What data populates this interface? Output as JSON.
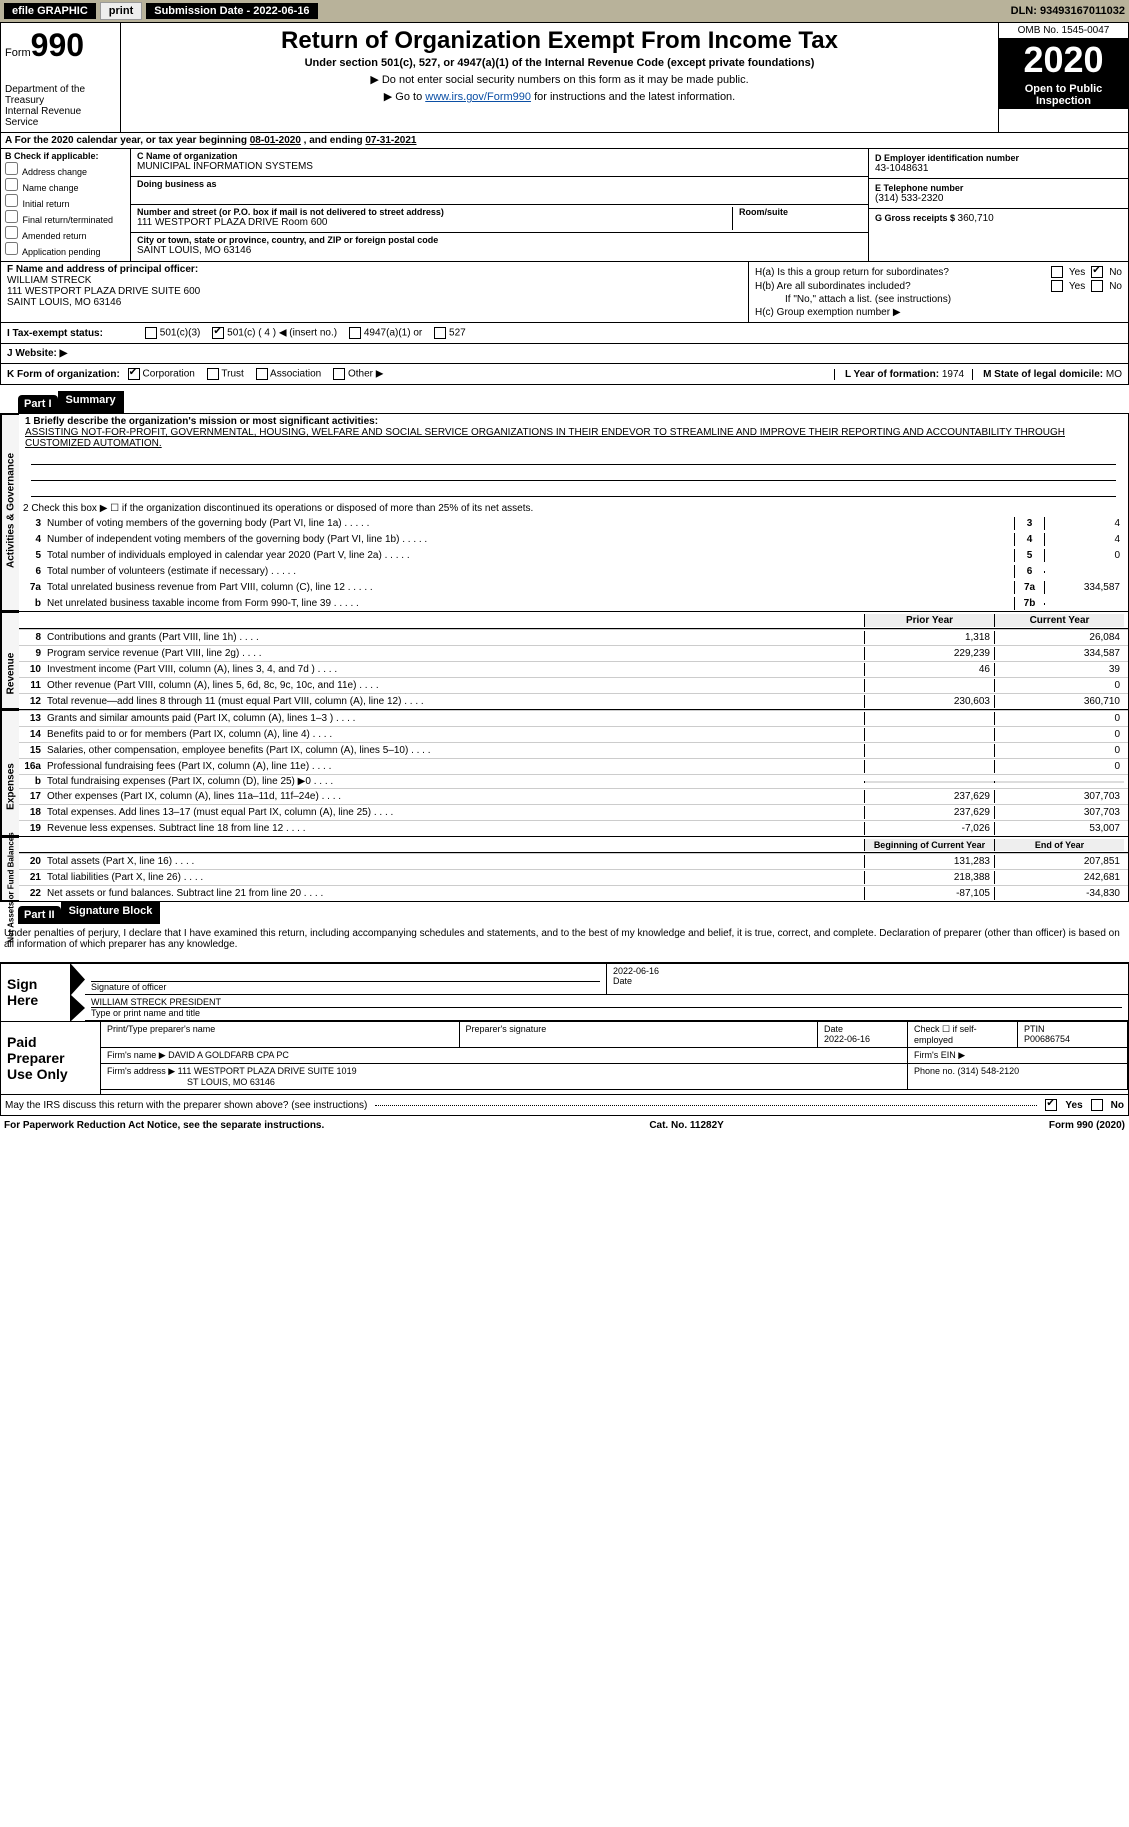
{
  "topbar": {
    "efile_label": "efile GRAPHIC",
    "print_btn": "print",
    "submission_label": "Submission Date - ",
    "submission_date": "2022-06-16",
    "dln_label": "DLN: ",
    "dln": "93493167011032"
  },
  "header": {
    "form_word": "Form",
    "form_number": "990",
    "dept1": "Department of the Treasury",
    "dept2": "Internal Revenue Service",
    "title": "Return of Organization Exempt From Income Tax",
    "subtitle": "Under section 501(c), 527, or 4947(a)(1) of the Internal Revenue Code (except private foundations)",
    "instr1": "▶ Do not enter social security numbers on this form as it may be made public.",
    "instr2_prefix": "▶ Go to ",
    "instr2_link": "www.irs.gov/Form990",
    "instr2_suffix": " for instructions and the latest information.",
    "omb": "OMB No. 1545-0047",
    "year": "2020",
    "open_public": "Open to Public Inspection"
  },
  "period": {
    "text_prefix": "A For the 2020 calendar year, or tax year beginning ",
    "begin": "08-01-2020",
    "mid": " , and ending ",
    "end": "07-31-2021"
  },
  "boxB": {
    "header": "B Check if applicable:",
    "options": [
      "Address change",
      "Name change",
      "Initial return",
      "Final return/terminated",
      "Amended return",
      "Application pending"
    ]
  },
  "boxC": {
    "name_label": "C Name of organization",
    "name": "MUNICIPAL INFORMATION SYSTEMS",
    "dba_label": "Doing business as",
    "addr_label": "Number and street (or P.O. box if mail is not delivered to street address)",
    "addr": "111 WESTPORT PLAZA DRIVE Room 600",
    "room_label": "Room/suite",
    "city_label": "City or town, state or province, country, and ZIP or foreign postal code",
    "city": "SAINT LOUIS, MO  63146"
  },
  "boxD": {
    "label": "D Employer identification number",
    "value": "43-1048631"
  },
  "boxE": {
    "label": "E Telephone number",
    "value": "(314) 533-2320"
  },
  "boxG": {
    "label": "G Gross receipts $ ",
    "value": "360,710"
  },
  "boxF": {
    "label": "F Name and address of principal officer:",
    "name": "WILLIAM STRECK",
    "addr1": "111 WESTPORT PLAZA DRIVE SUITE 600",
    "addr2": "SAINT LOUIS, MO  63146"
  },
  "boxH": {
    "a_label": "H(a)  Is this a group return for subordinates?",
    "a_no": true,
    "b_label": "H(b)  Are all subordinates included?",
    "b_note": "If \"No,\" attach a list. (see instructions)",
    "c_label": "H(c)  Group exemption number ▶"
  },
  "rowI": {
    "label": "I    Tax-exempt status:",
    "opts": [
      "501(c)(3)",
      "501(c) ( 4 ) ◀ (insert no.)",
      "4947(a)(1) or",
      "527"
    ],
    "checked_index": 1
  },
  "rowJ": {
    "label": "J    Website: ▶"
  },
  "rowK": {
    "label": "K Form of organization:",
    "opts": [
      "Corporation",
      "Trust",
      "Association",
      "Other ▶"
    ],
    "checked_index": 0,
    "L_label": "L Year of formation: ",
    "L_value": "1974",
    "M_label": "M State of legal domicile: ",
    "M_value": "MO"
  },
  "parts": {
    "part1_label": "Part I",
    "part1_title": "Summary",
    "part2_label": "Part II",
    "part2_title": "Signature Block"
  },
  "summary": {
    "mission_label": "1   Briefly describe the organization's mission or most significant activities:",
    "mission": "ASSISTING NOT-FOR-PROFIT, GOVERNMENTAL, HOUSING, WELFARE AND SOCIAL SERVICE ORGANIZATIONS IN THEIR ENDEVOR TO STREAMLINE AND IMPROVE THEIR REPORTING AND ACCOUNTABILITY THROUGH CUSTOMIZED AUTOMATION.",
    "line2": "2   Check this box ▶ ☐  if the organization discontinued its operations or disposed of more than 25% of its net assets.",
    "governance_tab": "Activities & Governance",
    "revenue_tab": "Revenue",
    "expenses_tab": "Expenses",
    "netassets_tab": "Net Assets or Fund Balances",
    "gov_lines": [
      {
        "n": "3",
        "d": "Number of voting members of the governing body (Part VI, line 1a)",
        "idx": "3",
        "v": "4"
      },
      {
        "n": "4",
        "d": "Number of independent voting members of the governing body (Part VI, line 1b)",
        "idx": "4",
        "v": "4"
      },
      {
        "n": "5",
        "d": "Total number of individuals employed in calendar year 2020 (Part V, line 2a)",
        "idx": "5",
        "v": "0"
      },
      {
        "n": "6",
        "d": "Total number of volunteers (estimate if necessary)",
        "idx": "6",
        "v": ""
      },
      {
        "n": "7a",
        "d": "Total unrelated business revenue from Part VIII, column (C), line 12",
        "idx": "7a",
        "v": "334,587"
      },
      {
        "n": "b",
        "d": "Net unrelated business taxable income from Form 990-T, line 39",
        "idx": "7b",
        "v": ""
      }
    ],
    "col_prior": "Prior Year",
    "col_current": "Current Year",
    "col_begin": "Beginning of Current Year",
    "col_end": "End of Year",
    "rev_lines": [
      {
        "n": "8",
        "d": "Contributions and grants (Part VIII, line 1h)",
        "p": "1,318",
        "c": "26,084"
      },
      {
        "n": "9",
        "d": "Program service revenue (Part VIII, line 2g)",
        "p": "229,239",
        "c": "334,587"
      },
      {
        "n": "10",
        "d": "Investment income (Part VIII, column (A), lines 3, 4, and 7d )",
        "p": "46",
        "c": "39"
      },
      {
        "n": "11",
        "d": "Other revenue (Part VIII, column (A), lines 5, 6d, 8c, 9c, 10c, and 11e)",
        "p": "",
        "c": "0"
      },
      {
        "n": "12",
        "d": "Total revenue—add lines 8 through 11 (must equal Part VIII, column (A), line 12)",
        "p": "230,603",
        "c": "360,710"
      }
    ],
    "exp_lines": [
      {
        "n": "13",
        "d": "Grants and similar amounts paid (Part IX, column (A), lines 1–3 )",
        "p": "",
        "c": "0"
      },
      {
        "n": "14",
        "d": "Benefits paid to or for members (Part IX, column (A), line 4)",
        "p": "",
        "c": "0"
      },
      {
        "n": "15",
        "d": "Salaries, other compensation, employee benefits (Part IX, column (A), lines 5–10)",
        "p": "",
        "c": "0"
      },
      {
        "n": "16a",
        "d": "Professional fundraising fees (Part IX, column (A), line 11e)",
        "p": "",
        "c": "0"
      },
      {
        "n": "b",
        "d": "Total fundraising expenses (Part IX, column (D), line 25) ▶0",
        "p": "__shade__",
        "c": "__shade__"
      },
      {
        "n": "17",
        "d": "Other expenses (Part IX, column (A), lines 11a–11d, 11f–24e)",
        "p": "237,629",
        "c": "307,703"
      },
      {
        "n": "18",
        "d": "Total expenses. Add lines 13–17 (must equal Part IX, column (A), line 25)",
        "p": "237,629",
        "c": "307,703"
      },
      {
        "n": "19",
        "d": "Revenue less expenses. Subtract line 18 from line 12",
        "p": "-7,026",
        "c": "53,007"
      }
    ],
    "net_lines": [
      {
        "n": "20",
        "d": "Total assets (Part X, line 16)",
        "p": "131,283",
        "c": "207,851"
      },
      {
        "n": "21",
        "d": "Total liabilities (Part X, line 26)",
        "p": "218,388",
        "c": "242,681"
      },
      {
        "n": "22",
        "d": "Net assets or fund balances. Subtract line 21 from line 20",
        "p": "-87,105",
        "c": "-34,830"
      }
    ]
  },
  "signature": {
    "intro": "Under penalties of perjury, I declare that I have examined this return, including accompanying schedules and statements, and to the best of my knowledge and belief, it is true, correct, and complete. Declaration of preparer (other than officer) is based on all information of which preparer has any knowledge.",
    "sign_here": "Sign Here",
    "sig_officer_label": "Signature of officer",
    "date_label": "Date",
    "sig_date": "2022-06-16",
    "name_title": "WILLIAM STRECK  PRESIDENT",
    "name_title_label": "Type or print name and title",
    "paid_label": "Paid Preparer Use Only",
    "prep_name_label": "Print/Type preparer's name",
    "prep_sig_label": "Preparer's signature",
    "prep_date_label": "Date",
    "prep_date": "2022-06-16",
    "self_emp_label": "Check ☐ if self-employed",
    "ptin_label": "PTIN",
    "ptin": "P00686754",
    "firm_name_label": "Firm's name    ▶",
    "firm_name": "DAVID A GOLDFARB CPA PC",
    "firm_ein_label": "Firm's EIN ▶",
    "firm_addr_label": "Firm's address ▶",
    "firm_addr1": "111 WESTPORT PLAZA DRIVE SUITE 1019",
    "firm_addr2": "ST LOUIS, MO  63146",
    "phone_label": "Phone no. ",
    "phone": "(314) 548-2120",
    "discuss": "May the IRS discuss this return with the preparer shown above? (see instructions)",
    "discuss_yes": true
  },
  "footer": {
    "left": "For Paperwork Reduction Act Notice, see the separate instructions.",
    "mid": "Cat. No. 11282Y",
    "right": "Form 990 (2020)"
  }
}
